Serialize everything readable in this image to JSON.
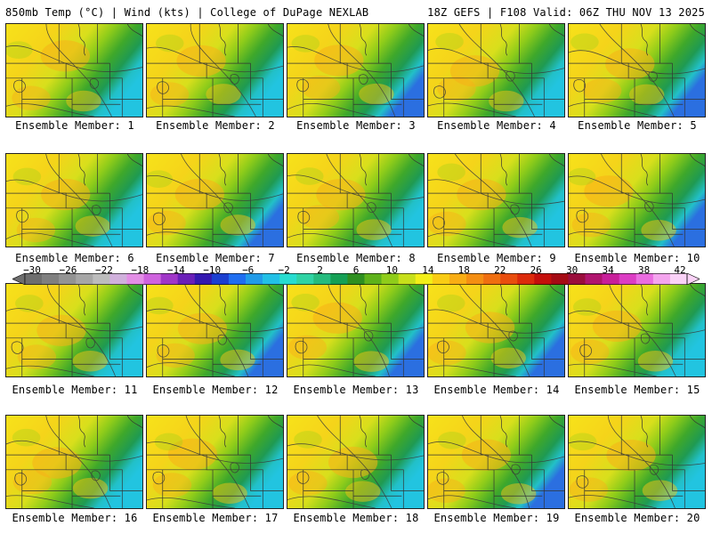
{
  "header": {
    "left": "850mb Temp (°C) | Wind (kts) | College of DuPage NEXLAB",
    "right": "18Z GEFS | F108 Valid: 06Z THU NOV 13 2025"
  },
  "members": [
    "Ensemble Member: 1",
    "Ensemble Member: 2",
    "Ensemble Member: 3",
    "Ensemble Member: 4",
    "Ensemble Member: 5",
    "Ensemble Member: 6",
    "Ensemble Member: 7",
    "Ensemble Member: 8",
    "Ensemble Member: 9",
    "Ensemble Member: 10",
    "Ensemble Member: 11",
    "Ensemble Member: 12",
    "Ensemble Member: 13",
    "Ensemble Member: 14",
    "Ensemble Member: 15",
    "Ensemble Member: 16",
    "Ensemble Member: 17",
    "Ensemble Member: 18",
    "Ensemble Member: 19",
    "Ensemble Member: 20"
  ],
  "colorbar": {
    "labels": [
      "−30",
      "−26",
      "−22",
      "−18",
      "−14",
      "−10",
      "−6",
      "−2",
      "2",
      "6",
      "10",
      "14",
      "18",
      "22",
      "26",
      "30",
      "34",
      "38",
      "42"
    ],
    "colors": [
      "#6e6e6e",
      "#7f7f7f",
      "#939393",
      "#a6a6a6",
      "#bcbcbc",
      "#d0b0dc",
      "#e38ee6",
      "#cf62de",
      "#a036c8",
      "#6a1fb8",
      "#3418b0",
      "#1b3fd0",
      "#1f6ef0",
      "#219be8",
      "#22c0e6",
      "#27dcd0",
      "#2fd3a4",
      "#25bb7e",
      "#15a055",
      "#2e8f20",
      "#5eb21a",
      "#8fcc1a",
      "#c7df1a",
      "#f2ee17",
      "#f9cc14",
      "#f8ad14",
      "#f48e12",
      "#ef6e10",
      "#e94d0e",
      "#dc2a0b",
      "#c40f0b",
      "#a50a14",
      "#9a0d3c",
      "#b0146e",
      "#c81f9a",
      "#dc3cc4",
      "#ea6ce0",
      "#f4a4ee",
      "#fad2f7"
    ]
  }
}
